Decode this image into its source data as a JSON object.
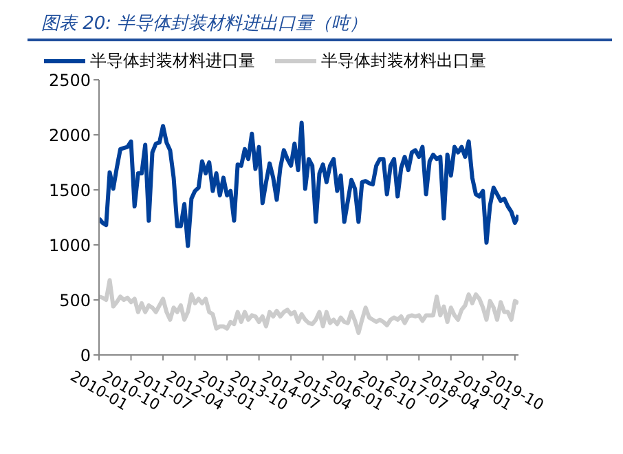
{
  "chart_data": {
    "type": "line",
    "title": "图表 20:  半导体封装材料进出口量（吨）",
    "categories": [
      "2010-01",
      null,
      null,
      null,
      null,
      null,
      null,
      null,
      null,
      "2010-10",
      null,
      null,
      null,
      null,
      null,
      null,
      null,
      null,
      "2011-07",
      null,
      null,
      null,
      null,
      null,
      null,
      null,
      null,
      "2012-04",
      null,
      null,
      null,
      null,
      null,
      null,
      null,
      null,
      "2013-01",
      null,
      null,
      null,
      null,
      null,
      null,
      null,
      null,
      "2013-10",
      null,
      null,
      null,
      null,
      null,
      null,
      null,
      null,
      "2014-07",
      null,
      null,
      null,
      null,
      null,
      null,
      null,
      null,
      "2015-04",
      null,
      null,
      null,
      null,
      null,
      null,
      null,
      null,
      "2016-01",
      null,
      null,
      null,
      null,
      null,
      null,
      null,
      null,
      "2016-10",
      null,
      null,
      null,
      null,
      null,
      null,
      null,
      null,
      "2017-07",
      null,
      null,
      null,
      null,
      null,
      null,
      null,
      null,
      "2018-04",
      null,
      null,
      null,
      null,
      null,
      null,
      null,
      null,
      "2019-01",
      null,
      null,
      null,
      null,
      null,
      null,
      null,
      null,
      "2019-10",
      null
    ],
    "series": [
      {
        "name": "半导体封装材料进口量",
        "color": "#00409a",
        "values": [
          1240,
          1200,
          1180,
          1660,
          1510,
          1700,
          1870,
          1880,
          1890,
          1940,
          1350,
          1650,
          1650,
          1910,
          1220,
          1840,
          1920,
          1930,
          2080,
          1930,
          1860,
          1610,
          1170,
          1170,
          1370,
          990,
          1420,
          1490,
          1520,
          1760,
          1650,
          1750,
          1490,
          1650,
          1450,
          1610,
          1450,
          1490,
          1220,
          1730,
          1720,
          1870,
          1780,
          2010,
          1690,
          1890,
          1380,
          1570,
          1740,
          1610,
          1410,
          1700,
          1860,
          1780,
          1720,
          1920,
          1680,
          2110,
          1510,
          1780,
          1720,
          1210,
          1650,
          1730,
          1570,
          1720,
          1780,
          1490,
          1630,
          1210,
          1400,
          1590,
          1510,
          1210,
          1570,
          1580,
          1560,
          1550,
          1720,
          1780,
          1780,
          1460,
          1720,
          1780,
          1440,
          1700,
          1800,
          1680,
          1840,
          1860,
          1800,
          1890,
          1460,
          1760,
          1820,
          1780,
          1800,
          1240,
          1820,
          1630,
          1890,
          1840,
          1890,
          1800,
          1940,
          1610,
          1460,
          1440,
          1490,
          1020,
          1360,
          1520,
          1460,
          1400,
          1420,
          1350,
          1300,
          1200,
          1270
        ]
      },
      {
        "name": "半导体封装材料出口量",
        "color": "#cccccc",
        "values": [
          530,
          520,
          500,
          680,
          440,
          480,
          530,
          500,
          520,
          480,
          510,
          390,
          470,
          390,
          450,
          430,
          390,
          450,
          510,
          390,
          320,
          430,
          390,
          450,
          320,
          390,
          550,
          470,
          510,
          470,
          510,
          390,
          370,
          240,
          260,
          260,
          240,
          300,
          280,
          390,
          300,
          390,
          320,
          360,
          350,
          300,
          350,
          260,
          390,
          350,
          400,
          350,
          390,
          410,
          370,
          390,
          300,
          370,
          320,
          290,
          280,
          320,
          390,
          260,
          390,
          290,
          320,
          280,
          340,
          300,
          290,
          390,
          310,
          200,
          320,
          430,
          340,
          320,
          300,
          320,
          300,
          270,
          320,
          340,
          320,
          350,
          290,
          350,
          360,
          350,
          360,
          310,
          360,
          360,
          360,
          530,
          360,
          440,
          300,
          430,
          360,
          320,
          410,
          450,
          550,
          470,
          550,
          510,
          430,
          320,
          490,
          430,
          320,
          480,
          390,
          390,
          320,
          490,
          470
        ]
      }
    ],
    "ylim": [
      0,
      2500
    ],
    "yticks": [
      0,
      500,
      1000,
      1500,
      2000,
      2500
    ],
    "grid": false,
    "legend": "top",
    "marker": "none",
    "line_style": "solid"
  }
}
